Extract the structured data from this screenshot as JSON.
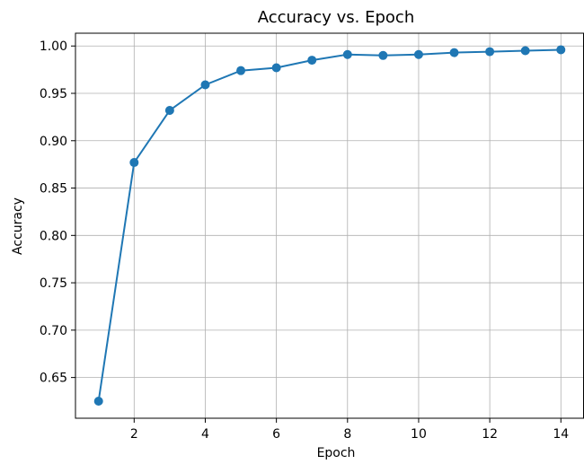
{
  "chart_data": {
    "type": "line",
    "title": "Accuracy vs. Epoch",
    "xlabel": "Epoch",
    "ylabel": "Accuracy",
    "x": [
      1,
      2,
      3,
      4,
      5,
      6,
      7,
      8,
      9,
      10,
      11,
      12,
      13,
      14
    ],
    "series": [
      {
        "values": [
          0.625,
          0.877,
          0.932,
          0.959,
          0.974,
          0.977,
          0.985,
          0.991,
          0.99,
          0.991,
          0.993,
          0.994,
          0.995,
          0.996
        ],
        "color": "#1f77b4"
      }
    ],
    "xlim": [
      0.35,
      14.65
    ],
    "ylim": [
      0.607,
      1.0135
    ],
    "xticks": [
      2,
      4,
      6,
      8,
      10,
      12,
      14
    ],
    "xtick_labels": [
      "2",
      "4",
      "6",
      "8",
      "10",
      "12",
      "14"
    ],
    "yticks": [
      0.65,
      0.7,
      0.75,
      0.8,
      0.85,
      0.9,
      0.95,
      1.0
    ],
    "ytick_labels": [
      "0.65",
      "0.70",
      "0.75",
      "0.80",
      "0.85",
      "0.90",
      "0.95",
      "1.00"
    ],
    "grid": true,
    "marker": "circle"
  }
}
